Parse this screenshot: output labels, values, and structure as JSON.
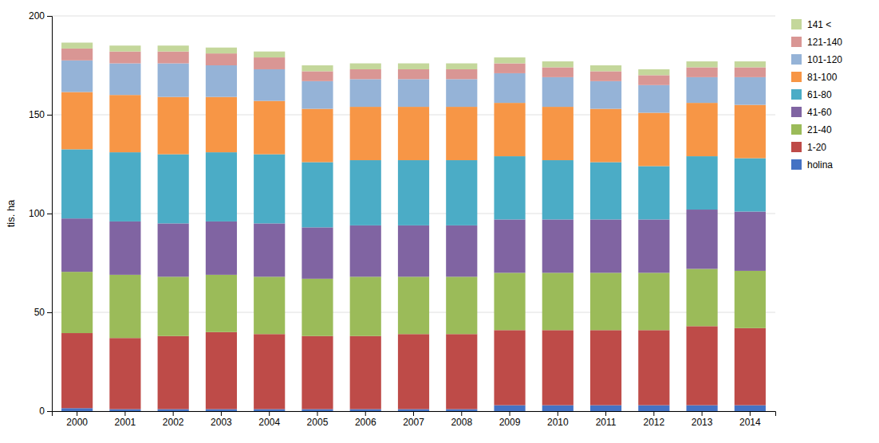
{
  "chart_data": {
    "type": "bar",
    "stacked": true,
    "categories": [
      "2000",
      "2001",
      "2002",
      "2003",
      "2004",
      "2005",
      "2006",
      "2007",
      "2008",
      "2009",
      "2010",
      "2011",
      "2012",
      "2013",
      "2014"
    ],
    "series": [
      {
        "name": "holina",
        "color": "#4472C4",
        "values": [
          1.5,
          1.0,
          1.0,
          1.0,
          1.0,
          1.0,
          1.0,
          1.0,
          1.0,
          3.0,
          3.0,
          3.0,
          3.0,
          3.0,
          3.0
        ]
      },
      {
        "name": "1-20",
        "color": "#BE4B48",
        "values": [
          38,
          36,
          37,
          39,
          38,
          37,
          37,
          38,
          38,
          38,
          38,
          38,
          38,
          40,
          39
        ]
      },
      {
        "name": "21-40",
        "color": "#9BBB59",
        "values": [
          31,
          32,
          30,
          29,
          29,
          29,
          30,
          29,
          29,
          29,
          29,
          29,
          29,
          29,
          29
        ]
      },
      {
        "name": "41-60",
        "color": "#8064A2",
        "values": [
          27,
          27,
          27,
          27,
          27,
          26,
          26,
          26,
          26,
          27,
          27,
          27,
          27,
          30,
          30
        ]
      },
      {
        "name": "61-80",
        "color": "#4BACC6",
        "values": [
          35,
          35,
          35,
          35,
          35,
          33,
          33,
          33,
          33,
          32,
          30,
          29,
          27,
          27,
          27
        ]
      },
      {
        "name": "81-100",
        "color": "#F79646",
        "values": [
          29,
          29,
          29,
          28,
          27,
          27,
          27,
          27,
          27,
          27,
          27,
          27,
          27,
          27,
          27
        ]
      },
      {
        "name": "101-120",
        "color": "#95B3D7",
        "values": [
          16,
          16,
          17,
          16,
          16,
          14,
          14,
          14,
          14,
          15,
          15,
          14,
          14,
          13,
          14
        ]
      },
      {
        "name": "121-140",
        "color": "#D99694",
        "values": [
          6,
          6,
          6,
          6,
          6,
          5,
          5,
          5,
          5,
          5,
          5,
          5,
          5,
          5,
          5
        ]
      },
      {
        "name": "141 <",
        "color": "#C4D79B",
        "values": [
          3,
          3,
          3,
          3,
          3,
          3,
          3,
          3,
          3,
          3,
          3,
          3,
          3,
          3,
          3
        ]
      }
    ],
    "ylabel": "tis. ha",
    "ylim": [
      0,
      200
    ],
    "yticks": [
      0,
      50,
      100,
      150,
      200
    ],
    "grid": true,
    "legend": "upper right"
  }
}
